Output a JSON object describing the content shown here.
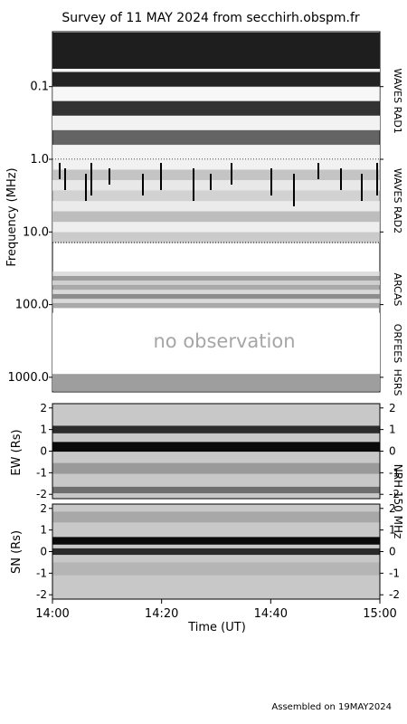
{
  "title": "Survey of 11 MAY 2024 from secchirh.obspm.fr",
  "footer": "Assembled on 19MAY2024",
  "no_observation_text": "no observation",
  "chart_data": [
    {
      "type": "heatmap",
      "panel": "dynamic-spectrum",
      "ylabel": "Frequency (MHz)",
      "y_scale": "log",
      "y_inverted": true,
      "ylim": [
        0.025,
        1600
      ],
      "y_ticks": [
        {
          "v": 0.1,
          "label": "0.1"
        },
        {
          "v": 1.0,
          "label": "1.0"
        },
        {
          "v": 10.0,
          "label": "10.0"
        },
        {
          "v": 100.0,
          "label": "100.0"
        },
        {
          "v": 1000.0,
          "label": "1000.0"
        }
      ],
      "instruments": [
        {
          "label": "WAVES RAD1",
          "range_mhz": [
            0.025,
            1.0
          ],
          "colors": [
            "#1a1a1a",
            "#f2f2f2"
          ]
        },
        {
          "label": "WAVES RAD2",
          "range_mhz": [
            1.0,
            14.0
          ],
          "colors": [
            "#e8e8e8",
            "#bdbdbd"
          ]
        },
        {
          "label": "ARCAS",
          "range_mhz": [
            35.0,
            110.0
          ],
          "colors": [
            "#cfcfcf",
            "#8c8c8c"
          ]
        },
        {
          "label": "ORFEES",
          "range_mhz": [
            130.0,
            900.0
          ],
          "colors": [
            "#ffffff"
          ]
        },
        {
          "label": "HSRS",
          "range_mhz": [
            900.0,
            1600.0
          ],
          "colors": [
            "#9e9e9e"
          ]
        }
      ],
      "grid": false
    },
    {
      "type": "heatmap",
      "panel": "NRH-EW",
      "ylabel": "EW (Rs)",
      "ylim": [
        -2.2,
        2.2
      ],
      "y_ticks": [
        -2,
        -1,
        0,
        1,
        2
      ],
      "instrument_label": "NRH 150 MHz",
      "bands": [
        {
          "y": 0.2,
          "shade": "#0a0a0a",
          "width": 0.45
        },
        {
          "y": 1.0,
          "shade": "#2b2b2b",
          "width": 0.35
        },
        {
          "y": -0.8,
          "shade": "#9a9a9a",
          "width": 0.5
        },
        {
          "y": -1.8,
          "shade": "#6e6e6e",
          "width": 0.3
        }
      ]
    },
    {
      "type": "heatmap",
      "panel": "NRH-NS",
      "ylabel": "SN (Rs)",
      "ylim": [
        -2.2,
        2.2
      ],
      "y_ticks": [
        -2,
        -1,
        0,
        1,
        2
      ],
      "bands": [
        {
          "y": 0.5,
          "shade": "#0a0a0a",
          "width": 0.35
        },
        {
          "y": 0.0,
          "shade": "#2a2a2a",
          "width": 0.3
        },
        {
          "y": 1.6,
          "shade": "#a8a8a8",
          "width": 0.5
        },
        {
          "y": -0.8,
          "shade": "#b5b5b5",
          "width": 0.6
        }
      ]
    }
  ],
  "x_axis": {
    "label": "Time (UT)",
    "range": [
      "14:00",
      "15:00"
    ],
    "ticks": [
      "14:00",
      "14:20",
      "14:40",
      "15:00"
    ]
  }
}
